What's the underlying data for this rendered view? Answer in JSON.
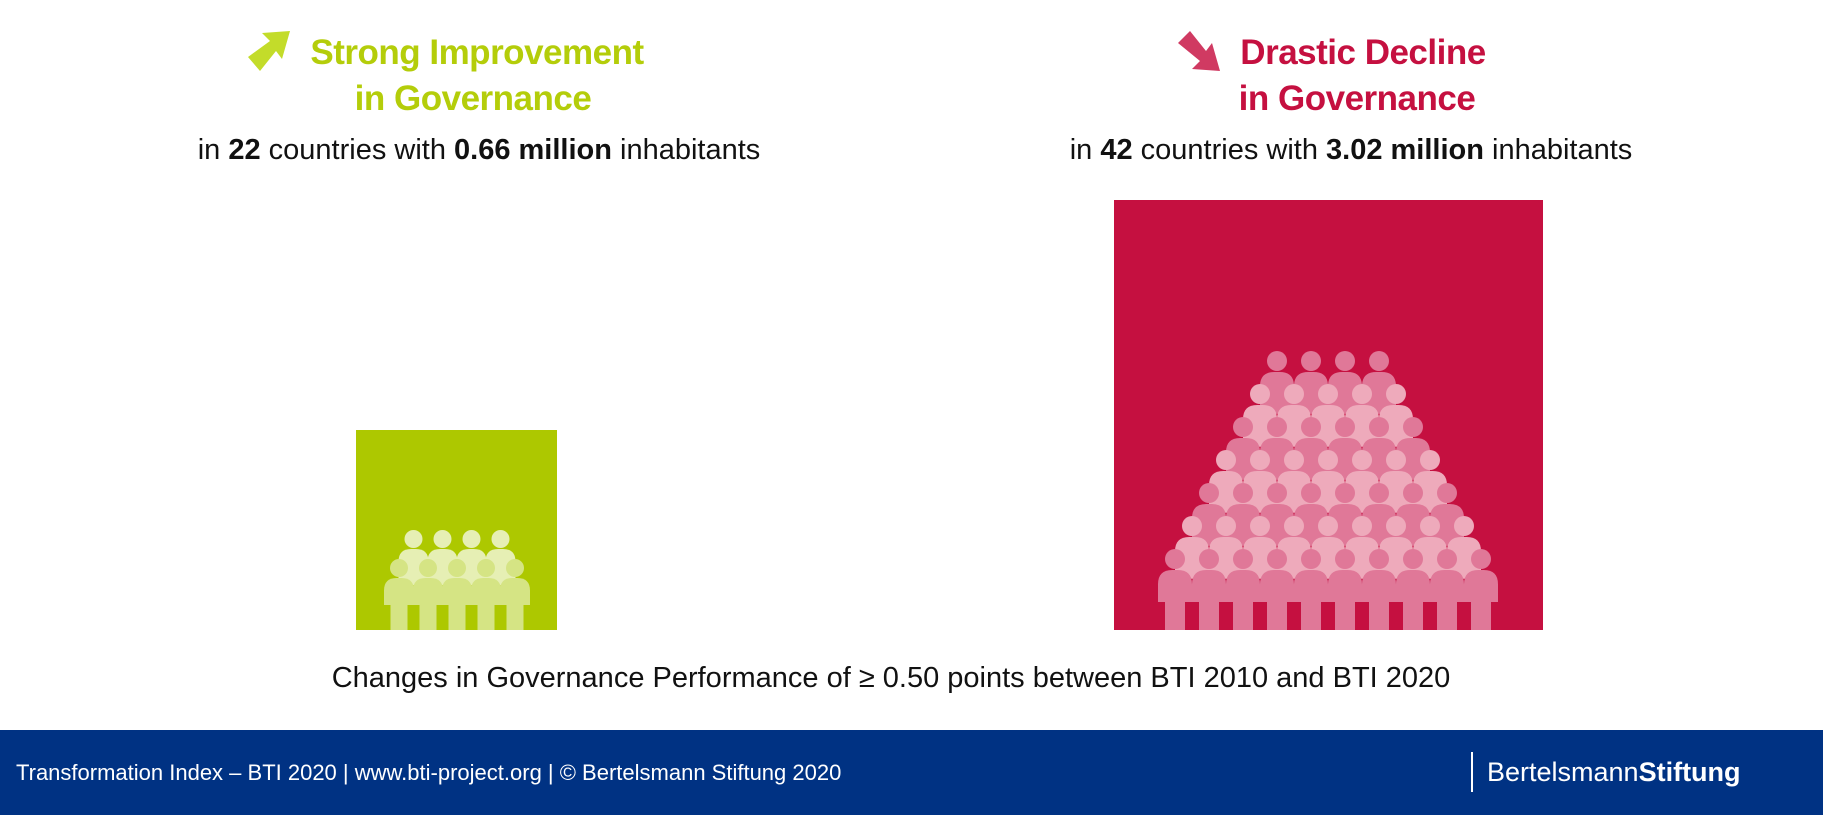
{
  "improvement": {
    "title_line1": "Strong Improvement",
    "title_line2": "in Governance",
    "sub_pre": "in ",
    "countries": "22",
    "sub_mid": " countries with ",
    "inhabitants": "0.66 million",
    "sub_post": " inhabitants",
    "icon": "arrow-up-right-icon",
    "color": "#adc800",
    "figure_rows": [
      4,
      5
    ]
  },
  "decline": {
    "title_line1": "Drastic Decline",
    "title_line2": "in Governance",
    "sub_pre": "in ",
    "countries": "42",
    "sub_mid": " countries with ",
    "inhabitants": "3.02 million",
    "sub_post": " inhabitants",
    "icon": "arrow-down-right-icon",
    "color": "#c51040",
    "figure_rows": [
      4,
      5,
      6,
      7,
      8,
      9,
      10
    ]
  },
  "caption": "Changes in Governance Performance of ≥ 0.50 points between BTI 2010 and BTI 2020",
  "footer": {
    "text": "Transformation Index – BTI 2020 | www.bti-project.org | © Bertelsmann Stiftung 2020",
    "logo_part1": "Bertelsmann",
    "logo_part2": "Stiftung"
  },
  "chart_data": {
    "type": "proportional-area",
    "title": "Changes in Governance Performance of ≥ 0.50 points between BTI 2010 and BTI 2020",
    "categories": [
      "Strong Improvement in Governance",
      "Drastic Decline in Governance"
    ],
    "countries": [
      22,
      42
    ],
    "inhabitants_millions": [
      0.66,
      3.02
    ],
    "colors": [
      "#adc800",
      "#c51040"
    ]
  }
}
